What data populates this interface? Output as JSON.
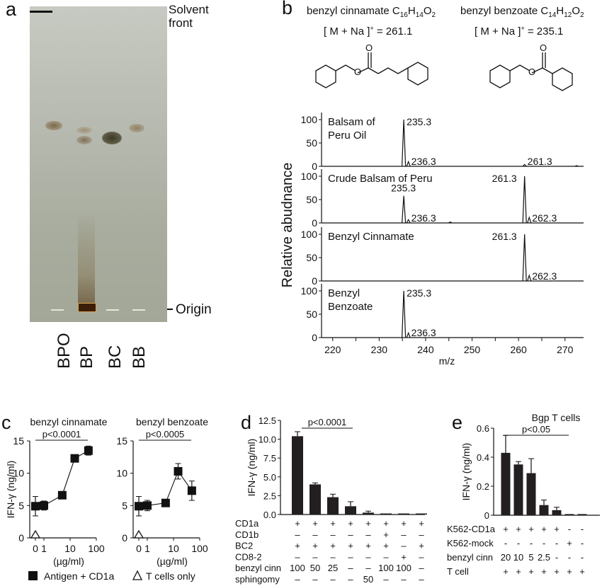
{
  "panels": {
    "a": "a",
    "b": "b",
    "c": "c",
    "d": "d",
    "e": "e"
  },
  "tlc": {
    "solvent_front": [
      "Solvent",
      "front"
    ],
    "origin": "Origin",
    "lanes": [
      "BPO",
      "BP",
      "BC",
      "BB"
    ]
  },
  "structures": {
    "bc": {
      "name": "benzyl cinnamate C",
      "sub1": "16",
      "h": "H",
      "sub2": "14",
      "o": "O",
      "sub3": "2",
      "ion": "[ M + Na ]",
      "sup": "+",
      "mass": " = 261.1"
    },
    "bb": {
      "name": "benzyl benzoate C",
      "sub1": "14",
      "h": "H",
      "sub2": "12",
      "o": "O",
      "sub3": "2",
      "ion": "[ M + Na ]",
      "sup": "+",
      "mass": " = 235.1"
    }
  },
  "ms": {
    "ylabel": "Relative abudnance",
    "xlabel": "m/z",
    "xticks": [
      220,
      225,
      230,
      235,
      240,
      245,
      250,
      255,
      260,
      265,
      270
    ],
    "yticks": [
      0,
      50,
      100
    ],
    "spectra": [
      {
        "title": [
          "Balsam of",
          "Peru Oil"
        ],
        "peaks": [
          {
            "mz": 235.3,
            "h": 100,
            "label": "235.3"
          },
          {
            "mz": 236.3,
            "h": 10,
            "label": "236.3"
          },
          {
            "mz": 261.3,
            "h": 4,
            "label": "261.3"
          },
          {
            "mz": 272.5,
            "h": 1.5,
            "label": ""
          }
        ]
      },
      {
        "title": [
          "Crude Balsam of Peru"
        ],
        "peaks": [
          {
            "mz": 235.3,
            "h": 58,
            "label": "235.3"
          },
          {
            "mz": 236.3,
            "h": 7,
            "label": "236.3"
          },
          {
            "mz": 245.3,
            "h": 2,
            "label": ""
          },
          {
            "mz": 261.3,
            "h": 100,
            "label": "261.3"
          },
          {
            "mz": 262.3,
            "h": 12,
            "label": "262.3"
          }
        ]
      },
      {
        "title": [
          "Benzyl Cinnamate"
        ],
        "peaks": [
          {
            "mz": 261.3,
            "h": 100,
            "label": "261.3"
          },
          {
            "mz": 262.3,
            "h": 12,
            "label": "262.3"
          }
        ]
      },
      {
        "title": [
          "Benzyl",
          "Benzoate"
        ],
        "peaks": [
          {
            "mz": 235.3,
            "h": 100,
            "label": "235.3"
          },
          {
            "mz": 236.3,
            "h": 10,
            "label": "236.3"
          }
        ]
      }
    ]
  },
  "chart_data": [
    {
      "type": "line",
      "panel": "c",
      "title": "benzyl cinnamate",
      "ylabel": "IFN-γ (ng/ml)",
      "xlabel": "(µg/ml)",
      "xscale": "log",
      "ylim": [
        0,
        15
      ],
      "yticks": [
        0,
        5,
        10,
        15
      ],
      "xticks": [
        "0",
        "1",
        "10",
        "100"
      ],
      "pvalue": "p<0.0001",
      "series": [
        {
          "name": "Antigen + CD1a",
          "x": [
            0,
            1,
            5,
            15,
            50
          ],
          "y": [
            4.9,
            5.0,
            6.6,
            12.3,
            13.5
          ],
          "err": [
            1.5,
            0.7,
            0.4,
            0.4,
            0.7
          ]
        },
        {
          "name": "T cells only",
          "x": [
            0
          ],
          "y": [
            0
          ]
        }
      ]
    },
    {
      "type": "line",
      "panel": "c",
      "title": "benzyl benzoate",
      "ylabel": "",
      "xlabel": "(µg/ml)",
      "xscale": "log",
      "ylim": [
        0,
        15
      ],
      "yticks": [
        0,
        5,
        10,
        15
      ],
      "xticks": [
        "0",
        "1",
        "10",
        "100"
      ],
      "pvalue": "p<0.0005",
      "series": [
        {
          "name": "Antigen + CD1a",
          "x": [
            0,
            1,
            5,
            15,
            50
          ],
          "y": [
            4.9,
            5.0,
            5.4,
            10.3,
            7.3
          ],
          "err": [
            1.5,
            0.8,
            0.3,
            1.2,
            1.5
          ]
        },
        {
          "name": "T cells only",
          "x": [
            0
          ],
          "y": [
            0
          ]
        }
      ]
    },
    {
      "type": "bar",
      "panel": "d",
      "ylabel": "IFN-γ (ng/ml)",
      "ylim": [
        0,
        12.5
      ],
      "yticks": [
        0,
        2.5,
        5.0,
        7.5,
        10.0,
        12.5
      ],
      "pvalue": "p<0.0001",
      "values": [
        10.4,
        4.0,
        2.3,
        1.1,
        0.25,
        0.05,
        0.05,
        0.05
      ],
      "err": [
        0.6,
        0.2,
        0.4,
        0.6,
        0.2,
        0.02,
        0.02,
        0.02
      ],
      "rows": [
        {
          "label": "CD1a",
          "cells": [
            "+",
            "+",
            "+",
            "+",
            "+",
            "+",
            "+",
            "+"
          ]
        },
        {
          "label": "CD1b",
          "cells": [
            "–",
            "–",
            "–",
            "–",
            "–",
            "+",
            "–",
            "–"
          ]
        },
        {
          "label": "BC2",
          "cells": [
            "+",
            "+",
            "+",
            "+",
            "+",
            "+",
            "–",
            "+"
          ]
        },
        {
          "label": "CD8-2",
          "cells": [
            "–",
            "–",
            "–",
            "–",
            "–",
            "–",
            "+",
            "–"
          ]
        },
        {
          "label": "benzyl cinn",
          "cells": [
            "100",
            "50",
            "25",
            "–",
            "–",
            "100",
            "100",
            "–"
          ]
        },
        {
          "label": "sphingomy",
          "cells": [
            "–",
            "–",
            "–",
            "–",
            "50",
            "–",
            "–",
            "–"
          ]
        }
      ]
    },
    {
      "type": "bar",
      "panel": "e",
      "title": "Bgp T cells",
      "ylabel": "IFN-γ (ng/ml)",
      "ylim": [
        0,
        0.6
      ],
      "yticks": [
        0,
        0.2,
        0.4,
        0.6
      ],
      "pvalue": "p<0.05",
      "values": [
        0.43,
        0.35,
        0.29,
        0.07,
        0.035,
        0.008,
        0.008
      ],
      "err": [
        0.12,
        0.02,
        0.1,
        0.035,
        0.02,
        0.003,
        0.003
      ],
      "rows": [
        {
          "label": "K562-CD1a",
          "cells": [
            "+",
            "+",
            "+",
            "+",
            "+",
            "-",
            "-"
          ]
        },
        {
          "label": "K562-mock",
          "cells": [
            "-",
            "-",
            "-",
            "-",
            "-",
            "+",
            "-"
          ]
        },
        {
          "label": "benzyl cinn",
          "cells": [
            "20",
            "10",
            "5",
            "2.5",
            "-",
            "-",
            "-"
          ]
        },
        {
          "label": "T cell",
          "cells": [
            "+",
            "+",
            "+",
            "+",
            "+",
            "+",
            "+"
          ]
        }
      ]
    }
  ],
  "legend": {
    "filled": "Antigen + CD1a",
    "open": "T cells only"
  }
}
